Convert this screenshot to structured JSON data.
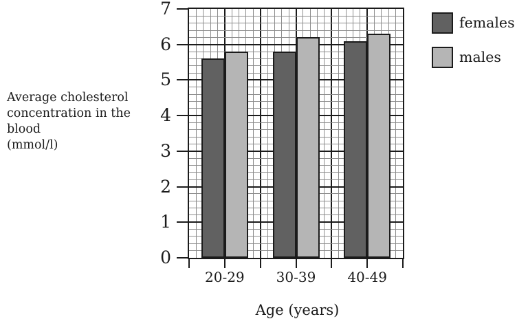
{
  "page": {
    "background": "#ffffff",
    "text_color": "#1b1b1b"
  },
  "y_axis_title_lines": [
    "Average cholesterol",
    "concentration in the",
    "blood",
    "(mmol/l)"
  ],
  "chart_data": {
    "type": "bar",
    "title": "",
    "categories": [
      "20-29",
      "30-39",
      "40-49"
    ],
    "series": [
      {
        "name": "females",
        "color": "#616161",
        "values": [
          5.6,
          5.8,
          6.1
        ]
      },
      {
        "name": "males",
        "color": "#b5b5b5",
        "values": [
          5.8,
          6.2,
          6.3
        ]
      }
    ],
    "xlabel": "Age (years)",
    "ylabel": "Average cholesterol concentration in the blood (mmol/l)",
    "ylim": [
      0,
      7
    ],
    "y_tick_step": 1,
    "y_minor_step": 0.2,
    "grid": "graph-paper: minor squares every 0.2 units, bold gridlines every 1 unit both directions",
    "legend_position": "top-right, outside plot",
    "legend": [
      "females",
      "males"
    ]
  },
  "colors": {
    "bar_border": "#1b1b1b",
    "grid_minor": "#8c8c8c",
    "grid_major": "#1b1b1b",
    "axis": "#1b1b1b"
  }
}
